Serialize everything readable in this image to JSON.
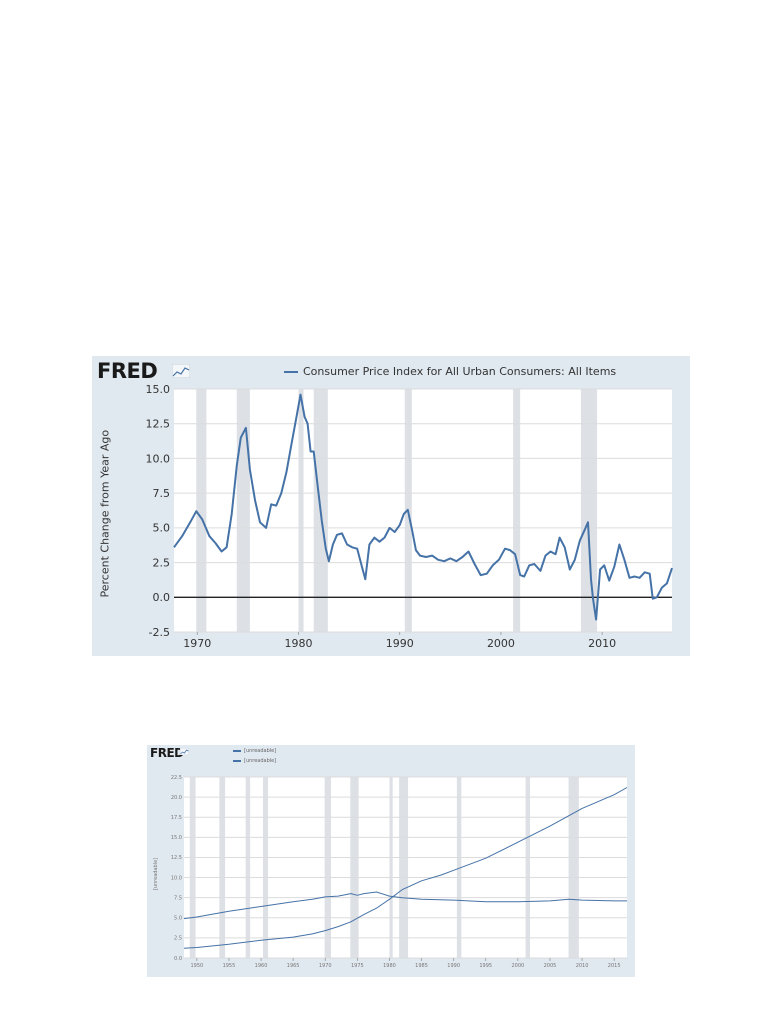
{
  "page": {
    "background": "#ffffff"
  },
  "charts": {
    "top": {
      "logo": "FRED",
      "legend": "Consumer Price Index for All Urban Consumers: All Items",
      "ylabel": "Percent Change from Year Ago",
      "background": "#e1e9f0",
      "plot_background": "#ffffff",
      "line_color": "#4572a7",
      "recession_color": "#dde1e6",
      "zero_line_color": "#222222"
    },
    "bottom": {
      "logo": "FRED",
      "legend_1": "[unreadable]",
      "legend_2": "[unreadable]",
      "ylabel": "[unreadable]",
      "background": "#e1e9f0",
      "plot_background": "#ffffff",
      "line_color": "#4572a7",
      "recession_color": "#dde1e6"
    }
  },
  "chart_data": [
    {
      "type": "line",
      "title": "",
      "xlabel": "",
      "ylabel": "Percent Change from Year Ago",
      "legend_position": "top",
      "grid": true,
      "xlim": [
        1967.7,
        2016.9
      ],
      "ylim": [
        -2.5,
        15
      ],
      "x_ticks": [
        1970,
        1980,
        1990,
        2000,
        2010
      ],
      "x_tick_labels": [
        "1970",
        "1980",
        "1990",
        "2000",
        "2010"
      ],
      "y_ticks": [
        -2.5,
        0,
        2.5,
        5,
        7.5,
        10,
        12.5,
        15
      ],
      "y_tick_labels": [
        "-2.5",
        "0.0",
        "2.5",
        "5.0",
        "7.5",
        "10.0",
        "12.5",
        "15.0"
      ],
      "recessions": [
        [
          1969.9,
          1970.9
        ],
        [
          1973.9,
          1975.2
        ],
        [
          1980.0,
          1980.5
        ],
        [
          1981.5,
          1982.9
        ],
        [
          1990.5,
          1991.2
        ],
        [
          2001.2,
          2001.9
        ],
        [
          2007.9,
          2009.5
        ]
      ],
      "series": [
        {
          "name": "Consumer Price Index for All Urban Consumers: All Items",
          "x": [
            1967.7,
            1968.5,
            1969.3,
            1969.9,
            1970.5,
            1971.2,
            1971.8,
            1972.4,
            1972.9,
            1973.4,
            1973.9,
            1974.3,
            1974.8,
            1975.2,
            1975.7,
            1976.2,
            1976.8,
            1977.3,
            1977.8,
            1978.3,
            1978.8,
            1979.3,
            1979.8,
            1980.2,
            1980.6,
            1980.9,
            1981.2,
            1981.5,
            1981.9,
            1982.3,
            1982.7,
            1983.0,
            1983.4,
            1983.8,
            1984.3,
            1984.8,
            1985.3,
            1985.8,
            1986.3,
            1986.6,
            1987.0,
            1987.5,
            1988.0,
            1988.5,
            1989.0,
            1989.5,
            1990.0,
            1990.4,
            1990.8,
            1991.2,
            1991.6,
            1992.0,
            1992.6,
            1993.2,
            1993.8,
            1994.4,
            1995.0,
            1995.6,
            1996.2,
            1996.8,
            1997.4,
            1998.0,
            1998.6,
            1999.2,
            1999.8,
            2000.4,
            2000.9,
            2001.4,
            2001.9,
            2002.3,
            2002.8,
            2003.3,
            2003.9,
            2004.4,
            2004.9,
            2005.4,
            2005.8,
            2006.3,
            2006.8,
            2007.3,
            2007.8,
            2008.3,
            2008.6,
            2008.9,
            2009.1,
            2009.4,
            2009.8,
            2010.2,
            2010.7,
            2011.2,
            2011.7,
            2012.2,
            2012.7,
            2013.2,
            2013.7,
            2014.2,
            2014.7,
            2015.0,
            2015.4,
            2015.9,
            2016.4,
            2016.9
          ],
          "values": [
            3.6,
            4.4,
            5.4,
            6.2,
            5.6,
            4.4,
            3.9,
            3.3,
            3.6,
            6.0,
            9.5,
            11.5,
            12.2,
            9.2,
            7.0,
            5.4,
            5.0,
            6.7,
            6.6,
            7.5,
            9.0,
            11.0,
            13.0,
            14.6,
            13.0,
            12.5,
            10.5,
            10.5,
            8.0,
            5.5,
            3.5,
            2.6,
            3.8,
            4.5,
            4.6,
            3.8,
            3.6,
            3.5,
            2.1,
            1.3,
            3.8,
            4.3,
            4.0,
            4.3,
            5.0,
            4.7,
            5.2,
            6.0,
            6.3,
            4.9,
            3.4,
            3.0,
            2.9,
            3.0,
            2.7,
            2.6,
            2.8,
            2.6,
            2.9,
            3.3,
            2.4,
            1.6,
            1.7,
            2.3,
            2.7,
            3.5,
            3.4,
            3.1,
            1.6,
            1.5,
            2.3,
            2.4,
            1.9,
            3.0,
            3.3,
            3.1,
            4.3,
            3.6,
            2.0,
            2.7,
            4.1,
            4.9,
            5.4,
            1.3,
            -0.1,
            -1.6,
            2.0,
            2.3,
            1.2,
            2.2,
            3.8,
            2.7,
            1.4,
            1.5,
            1.4,
            1.8,
            1.7,
            -0.1,
            0.0,
            0.7,
            1.0,
            2.1
          ]
        }
      ]
    },
    {
      "type": "line",
      "title": "",
      "xlabel": "",
      "ylabel": "[unreadable]",
      "legend_position": "top",
      "grid": true,
      "xlim": [
        1948,
        2017
      ],
      "ylim": [
        0,
        22.5
      ],
      "x_ticks": [
        1950,
        1955,
        1960,
        1965,
        1970,
        1975,
        1980,
        1985,
        1990,
        1995,
        2000,
        2005,
        2010,
        2015
      ],
      "x_tick_labels": [
        "1950",
        "1955",
        "1960",
        "1965",
        "1970",
        "1975",
        "1980",
        "1985",
        "1990",
        "1995",
        "2000",
        "2005",
        "2010",
        "2015"
      ],
      "y_ticks": [
        0,
        2.5,
        5,
        7.5,
        10,
        12.5,
        15,
        17.5,
        20,
        22.5
      ],
      "y_tick_labels": [
        "0.0",
        "2.5",
        "5.0",
        "7.5",
        "10.0",
        "12.5",
        "15.0",
        "17.5",
        "20.0",
        "22.5"
      ],
      "recessions": [
        [
          1948.9,
          1949.8
        ],
        [
          1953.5,
          1954.4
        ],
        [
          1957.6,
          1958.3
        ],
        [
          1960.3,
          1961.1
        ],
        [
          1969.9,
          1970.9
        ],
        [
          1973.9,
          1975.2
        ],
        [
          1980.0,
          1980.5
        ],
        [
          1981.5,
          1982.9
        ],
        [
          1990.5,
          1991.2
        ],
        [
          2001.2,
          2001.9
        ],
        [
          2007.9,
          2009.5
        ]
      ],
      "series": [
        {
          "name": "[unreadable]",
          "x": [
            1948,
            1950,
            1955,
            1960,
            1965,
            1968,
            1970,
            1972,
            1974,
            1976,
            1978,
            1980,
            1982,
            1985,
            1988,
            1990,
            1995,
            2000,
            2005,
            2010,
            2015,
            2017
          ],
          "values": [
            1.2,
            1.3,
            1.7,
            2.2,
            2.6,
            3.0,
            3.4,
            3.9,
            4.5,
            5.4,
            6.2,
            7.3,
            8.5,
            9.6,
            10.3,
            10.9,
            12.4,
            14.4,
            16.4,
            18.6,
            20.3,
            21.2
          ]
        },
        {
          "name": "[unreadable]",
          "x": [
            1948,
            1950,
            1955,
            1960,
            1965,
            1968,
            1970,
            1972,
            1974,
            1975,
            1976,
            1978,
            1980,
            1982,
            1985,
            1990,
            1995,
            2000,
            2005,
            2008,
            2010,
            2015,
            2017
          ],
          "values": [
            4.9,
            5.1,
            5.8,
            6.4,
            7.0,
            7.3,
            7.6,
            7.7,
            8.0,
            7.8,
            8.0,
            8.2,
            7.7,
            7.5,
            7.3,
            7.2,
            7.0,
            7.0,
            7.1,
            7.3,
            7.2,
            7.1,
            7.1
          ]
        }
      ]
    }
  ]
}
